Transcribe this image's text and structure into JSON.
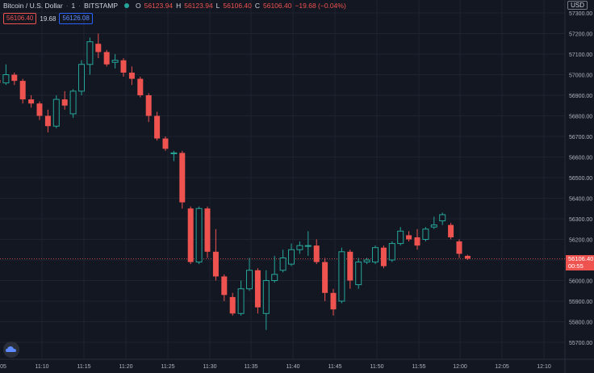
{
  "header": {
    "symbol": "Bitcoin / U.S. Dollar",
    "interval": "1",
    "exchange": "BITSTAMP",
    "o_label": "O",
    "o_value": "56123.94",
    "h_label": "H",
    "h_value": "56123.94",
    "l_label": "L",
    "l_value": "56106.40",
    "c_label": "C",
    "c_value": "56106.40",
    "change": "−19.68 (−0.04%)",
    "bid": "56106.40",
    "spread": "19.68",
    "ask": "56126.08"
  },
  "currency": "USD",
  "price_tag": {
    "price": "56106.40",
    "countdown": "00:55"
  },
  "colors": {
    "up": "#26a69a",
    "down": "#ef5350",
    "bg": "#131722",
    "grid": "#1f2330"
  },
  "chart_data": {
    "type": "candlestick",
    "ylim": [
      55650,
      57350
    ],
    "y_ticks": [
      "55700.00",
      "55800.00",
      "55900.00",
      "56000.00",
      "56100.00",
      "56200.00",
      "56300.00",
      "56400.00",
      "56500.00",
      "56600.00",
      "56700.00",
      "56800.00",
      "56900.00",
      "57000.00",
      "57100.00",
      "57200.00",
      "57300.00"
    ],
    "x_tick_labels": [
      ":05",
      "11:10",
      "11:15",
      "11:20",
      "11:25",
      "11:30",
      "11:35",
      "11:40",
      "11:45",
      "11:50",
      "11:55",
      "12:00",
      "12:05",
      "12:10"
    ],
    "candles": [
      {
        "o": 56975,
        "h": 57020,
        "l": 56880,
        "c": 56960
      },
      {
        "o": 56960,
        "h": 57050,
        "l": 56950,
        "c": 57000
      },
      {
        "o": 57000,
        "h": 57010,
        "l": 56950,
        "c": 56970
      },
      {
        "o": 56970,
        "h": 56980,
        "l": 56860,
        "c": 56880
      },
      {
        "o": 56880,
        "h": 56900,
        "l": 56840,
        "c": 56860
      },
      {
        "o": 56860,
        "h": 56870,
        "l": 56780,
        "c": 56800
      },
      {
        "o": 56800,
        "h": 56830,
        "l": 56720,
        "c": 56750
      },
      {
        "o": 56750,
        "h": 56900,
        "l": 56740,
        "c": 56880
      },
      {
        "o": 56880,
        "h": 56920,
        "l": 56830,
        "c": 56850
      },
      {
        "o": 56810,
        "h": 56930,
        "l": 56790,
        "c": 56920
      },
      {
        "o": 56920,
        "h": 57070,
        "l": 56900,
        "c": 57050
      },
      {
        "o": 57050,
        "h": 57180,
        "l": 57000,
        "c": 57160
      },
      {
        "o": 57150,
        "h": 57200,
        "l": 57080,
        "c": 57110
      },
      {
        "o": 57110,
        "h": 57120,
        "l": 57040,
        "c": 57050
      },
      {
        "o": 57060,
        "h": 57100,
        "l": 57030,
        "c": 57070
      },
      {
        "o": 57070,
        "h": 57080,
        "l": 56990,
        "c": 57010
      },
      {
        "o": 57010,
        "h": 57040,
        "l": 56950,
        "c": 56980
      },
      {
        "o": 56980,
        "h": 56990,
        "l": 56890,
        "c": 56900
      },
      {
        "o": 56900,
        "h": 56910,
        "l": 56770,
        "c": 56800
      },
      {
        "o": 56800,
        "h": 56820,
        "l": 56680,
        "c": 56690
      },
      {
        "o": 56690,
        "h": 56700,
        "l": 56630,
        "c": 56640
      },
      {
        "o": 56620,
        "h": 56630,
        "l": 56580,
        "c": 56620
      },
      {
        "o": 56620,
        "h": 56630,
        "l": 56350,
        "c": 56380
      },
      {
        "o": 56350,
        "h": 56360,
        "l": 56080,
        "c": 56090
      },
      {
        "o": 56090,
        "h": 56360,
        "l": 56080,
        "c": 56350
      },
      {
        "o": 56350,
        "h": 56360,
        "l": 56110,
        "c": 56140
      },
      {
        "o": 56140,
        "h": 56250,
        "l": 56000,
        "c": 56020
      },
      {
        "o": 56020,
        "h": 56030,
        "l": 55900,
        "c": 55930
      },
      {
        "o": 55920,
        "h": 55940,
        "l": 55830,
        "c": 55840
      },
      {
        "o": 55840,
        "h": 56000,
        "l": 55830,
        "c": 55960
      },
      {
        "o": 55960,
        "h": 56110,
        "l": 55950,
        "c": 56050
      },
      {
        "o": 56050,
        "h": 56060,
        "l": 55840,
        "c": 55870
      },
      {
        "o": 55840,
        "h": 56050,
        "l": 55760,
        "c": 56000
      },
      {
        "o": 56000,
        "h": 56120,
        "l": 55990,
        "c": 56030
      },
      {
        "o": 56050,
        "h": 56150,
        "l": 56040,
        "c": 56110
      },
      {
        "o": 56080,
        "h": 56180,
        "l": 56070,
        "c": 56150
      },
      {
        "o": 56150,
        "h": 56190,
        "l": 56130,
        "c": 56170
      },
      {
        "o": 56170,
        "h": 56240,
        "l": 56120,
        "c": 56170
      },
      {
        "o": 56170,
        "h": 56200,
        "l": 56080,
        "c": 56090
      },
      {
        "o": 56090,
        "h": 56110,
        "l": 55900,
        "c": 55940
      },
      {
        "o": 55940,
        "h": 55960,
        "l": 55830,
        "c": 55860
      },
      {
        "o": 55900,
        "h": 56160,
        "l": 55890,
        "c": 56140
      },
      {
        "o": 56140,
        "h": 56150,
        "l": 55960,
        "c": 56000
      },
      {
        "o": 55980,
        "h": 56110,
        "l": 55960,
        "c": 56090
      },
      {
        "o": 56090,
        "h": 56110,
        "l": 56080,
        "c": 56100
      },
      {
        "o": 56090,
        "h": 56170,
        "l": 56080,
        "c": 56160
      },
      {
        "o": 56160,
        "h": 56170,
        "l": 56060,
        "c": 56070
      },
      {
        "o": 56100,
        "h": 56190,
        "l": 56090,
        "c": 56180
      },
      {
        "o": 56180,
        "h": 56260,
        "l": 56170,
        "c": 56240
      },
      {
        "o": 56220,
        "h": 56240,
        "l": 56190,
        "c": 56200
      },
      {
        "o": 56210,
        "h": 56250,
        "l": 56150,
        "c": 56170
      },
      {
        "o": 56200,
        "h": 56260,
        "l": 56190,
        "c": 56250
      },
      {
        "o": 56260,
        "h": 56310,
        "l": 56250,
        "c": 56270
      },
      {
        "o": 56290,
        "h": 56330,
        "l": 56270,
        "c": 56320
      },
      {
        "o": 56270,
        "h": 56280,
        "l": 56200,
        "c": 56210
      },
      {
        "o": 56190,
        "h": 56200,
        "l": 56110,
        "c": 56130
      },
      {
        "o": 56120,
        "h": 56125,
        "l": 56100,
        "c": 56106
      }
    ],
    "last_price": 56106.4
  }
}
